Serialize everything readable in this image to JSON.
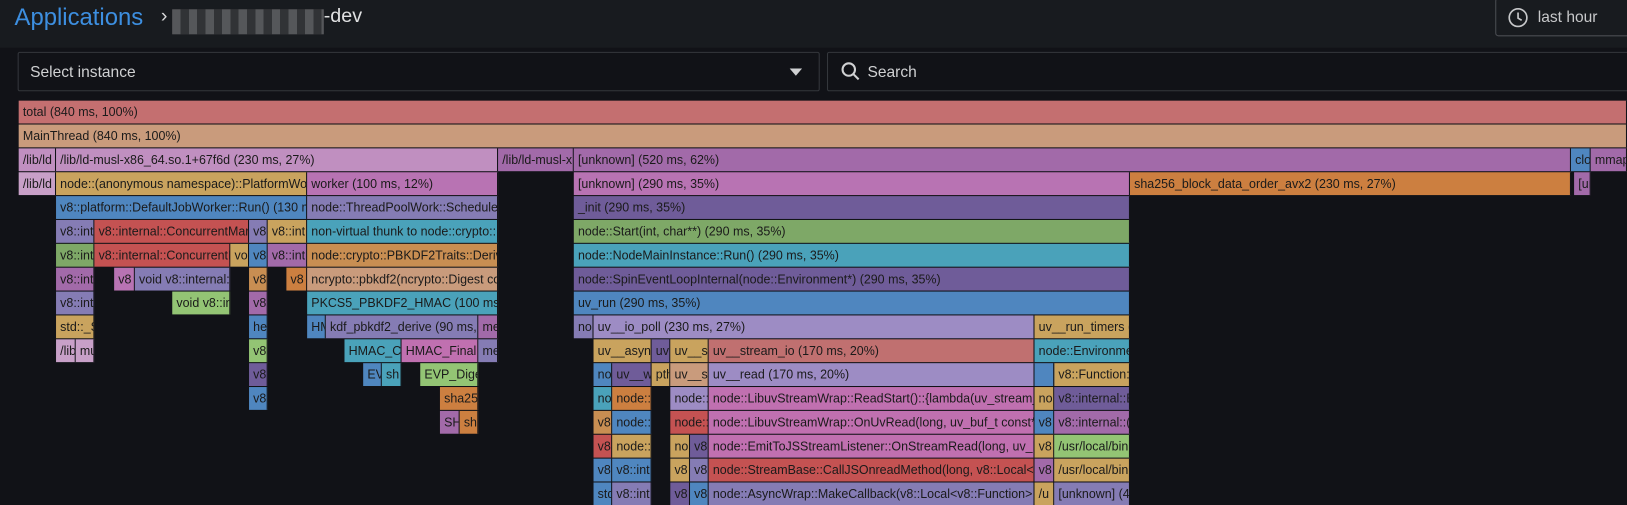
{
  "header": {
    "title": "Applications",
    "app_suffix": "-dev",
    "time_range": "last hour"
  },
  "toolbar": {
    "instance_placeholder": "Select instance",
    "search_placeholder": "Search"
  },
  "flamegraph": {
    "rows": [
      [
        "total (840 ms, 100%)"
      ],
      [
        "MainThread (840 ms, 100%)"
      ],
      [
        "/lib/ld",
        "/lib/ld-musl-x86_64.so.1+67f6d (230 ms, 27%)",
        "/lib/ld-musl-x",
        "[unknown] (520 ms, 62%)",
        "clo",
        "mmap"
      ],
      [
        "/lib/ld",
        "node::(anonymous namespace)::PlatformWor",
        "worker (100 ms, 12%)",
        "[unknown] (290 ms, 35%)",
        "sha256_block_data_order_avx2 (230 ms, 27%)",
        "[un"
      ],
      [
        "v8::platform::DefaultJobWorker::Run() (130 ms",
        "node::ThreadPoolWork::ScheduleW",
        "_init (290 ms, 35%)"
      ],
      [
        "v8::int",
        "v8::internal::ConcurrentMark",
        "v8",
        "v8::int",
        "non-virtual thunk to node::crypto::D",
        "node::Start(int, char**) (290 ms, 35%)"
      ],
      [
        "v8::int",
        "v8::internal::ConcurrentM",
        "voi",
        "v8",
        "v8::int",
        "node::crypto::PBKDF2Traits::DeriveB",
        "node::NodeMainInstance::Run() (290 ms, 35%)"
      ],
      [
        "v8::int",
        "v8",
        "void v8::internal::",
        "v8",
        "v8",
        "ncrypto::pbkdf2(ncrypto::Digest con",
        "node::SpinEventLoopInternal(node::Environment*) (290 ms, 35%)"
      ],
      [
        "v8::int",
        "void v8::in",
        "v8",
        "PKCS5_PBKDF2_HMAC (100 ms, 1",
        "uv_run (290 ms, 35%)"
      ],
      [
        "std::_S",
        "he",
        "HM",
        "kdf_pbkdf2_derive (90 ms, 11%)",
        "me",
        "no",
        "uv__io_poll (230 ms, 27%)",
        "uv__run_timers (5"
      ],
      [
        "/lib",
        "mu",
        "v8",
        "HMAC_CT",
        "HMAC_Final (",
        "me",
        "uv__async",
        "uv",
        "uv__se",
        "uv__stream_io (170 ms, 20%)",
        "node::Environme"
      ],
      [
        "v8",
        "EV",
        "sh",
        "EVP_Diges",
        "no",
        "uv__w",
        "pth",
        "uv__se",
        "uv__read (170 ms, 20%)",
        "v8::Function::"
      ],
      [
        "v8",
        "sha25",
        "no",
        "node::",
        "node::",
        "node::LibuvStreamWrap::ReadStart()::{lambda(uv_stream_s*",
        "no",
        "v8::internal::E"
      ],
      [
        "SH",
        "sh",
        "v8",
        "node::",
        "node::",
        "node::LibuvStreamWrap::OnUvRead(long, uv_buf_t const*) (1",
        "v8",
        "v8::internal::(a"
      ],
      [
        "v8",
        "node::",
        "no",
        "v8",
        "node::EmitToJSStreamListener::OnStreamRead(long, uv_buf",
        "v8",
        "/usr/local/bin"
      ],
      [
        "v8",
        "v8::int",
        "v8",
        "v8",
        "node::StreamBase::CallJSOnreadMethod(long, v8::Local<v8::",
        "v8",
        "/usr/local/bin"
      ],
      [
        "std",
        "v8::int",
        "v8",
        "v8",
        "node::AsyncWrap::MakeCallback(v8::Local<v8::Function>, int",
        "/u",
        "[unknown] (40"
      ]
    ]
  }
}
